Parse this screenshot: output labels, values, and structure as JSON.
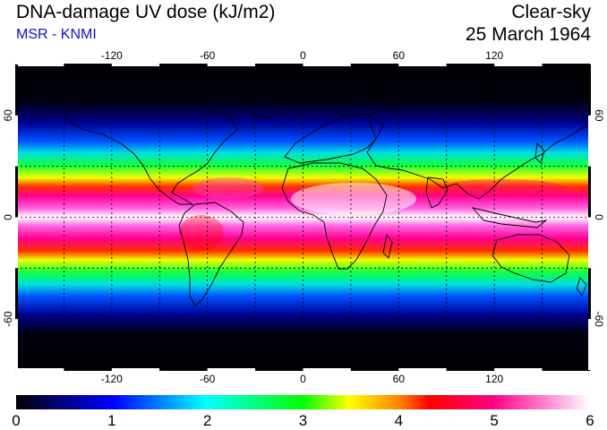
{
  "header": {
    "title": "DNA-damage UV dose (kJ/m2)",
    "subtitle": "MSR - KNMI",
    "sky_condition": "Clear-sky",
    "date": "25 March 1964"
  },
  "map": {
    "lon_ticks": [
      "-120",
      "-60",
      "0",
      "60",
      "120"
    ],
    "lat_ticks": [
      "60",
      "0",
      "-60"
    ],
    "lon_tick_values": [
      -120,
      -60,
      0,
      60,
      120
    ],
    "lat_tick_values": [
      60,
      0,
      -60
    ],
    "grid_lons": [
      -150,
      -120,
      -90,
      -60,
      -30,
      0,
      30,
      60,
      90,
      120,
      150
    ],
    "grid_lats": [
      60,
      30,
      0,
      -30,
      -60
    ],
    "lon_range": [
      -180,
      180
    ],
    "lat_range": [
      -90,
      90
    ]
  },
  "colorbar": {
    "labels": [
      "0",
      "1",
      "2",
      "3",
      "4",
      "5",
      "6"
    ],
    "range": [
      0,
      6
    ],
    "colors": [
      "#000000",
      "#0000ff",
      "#00ffff",
      "#00ff00",
      "#ffff00",
      "#ff0000",
      "#ff00a0",
      "#ffffff"
    ]
  }
}
